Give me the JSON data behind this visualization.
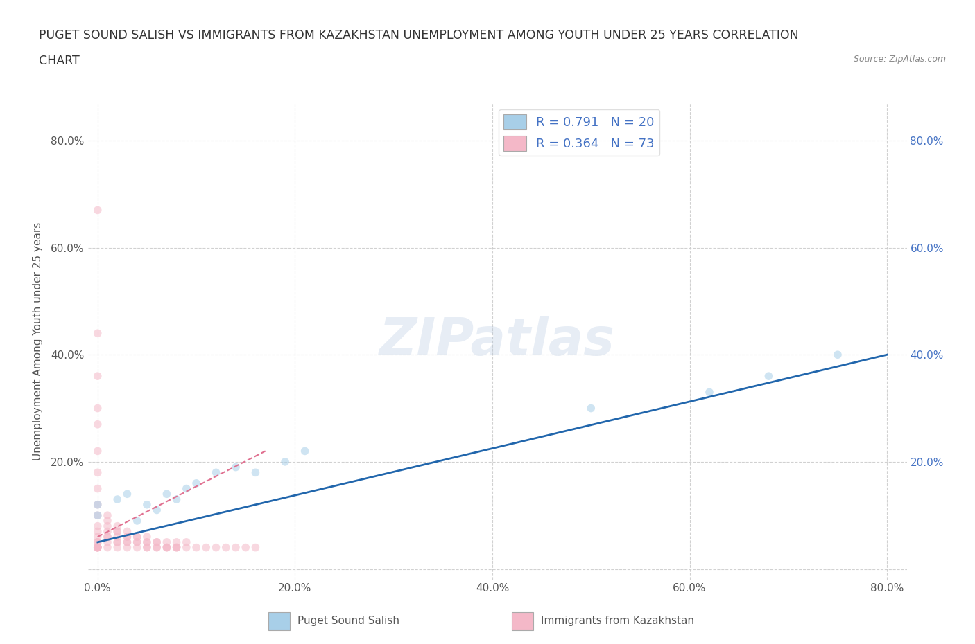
{
  "title_line1": "PUGET SOUND SALISH VS IMMIGRANTS FROM KAZAKHSTAN UNEMPLOYMENT AMONG YOUTH UNDER 25 YEARS CORRELATION",
  "title_line2": "CHART",
  "source": "Source: ZipAtlas.com",
  "ylabel": "Unemployment Among Youth under 25 years",
  "watermark": "ZIPatlas",
  "blue_color": "#a8cfe8",
  "pink_color": "#f4b8c8",
  "blue_line_color": "#2166ac",
  "pink_line_color": "#e07090",
  "axis_color": "#555555",
  "grid_color": "#cccccc",
  "background_color": "#ffffff",
  "right_tick_color": "#4472c4",
  "xlim": [
    -0.01,
    0.82
  ],
  "ylim": [
    -0.02,
    0.87
  ],
  "xticks": [
    0.0,
    0.2,
    0.4,
    0.6,
    0.8
  ],
  "yticks": [
    0.0,
    0.2,
    0.4,
    0.6,
    0.8
  ],
  "xticklabels": [
    "0.0%",
    "20.0%",
    "40.0%",
    "60.0%",
    "80.0%"
  ],
  "left_yticklabels": [
    "",
    "20.0%",
    "40.0%",
    "60.0%",
    "80.0%"
  ],
  "right_yticklabels": [
    "20.0%",
    "40.0%",
    "60.0%",
    "80.0%"
  ],
  "right_yticks": [
    0.2,
    0.4,
    0.6,
    0.8
  ],
  "blue_scatter_x": [
    0.0,
    0.0,
    0.02,
    0.03,
    0.04,
    0.05,
    0.06,
    0.07,
    0.08,
    0.09,
    0.1,
    0.12,
    0.14,
    0.16,
    0.19,
    0.21,
    0.5,
    0.62,
    0.68,
    0.75
  ],
  "blue_scatter_y": [
    0.1,
    0.12,
    0.13,
    0.14,
    0.09,
    0.12,
    0.11,
    0.14,
    0.13,
    0.15,
    0.16,
    0.18,
    0.19,
    0.18,
    0.2,
    0.22,
    0.3,
    0.33,
    0.36,
    0.4
  ],
  "pink_scatter_x": [
    0.0,
    0.0,
    0.0,
    0.0,
    0.0,
    0.0,
    0.0,
    0.0,
    0.0,
    0.0,
    0.0,
    0.0,
    0.0,
    0.0,
    0.0,
    0.0,
    0.0,
    0.0,
    0.0,
    0.0,
    0.01,
    0.01,
    0.01,
    0.01,
    0.01,
    0.01,
    0.01,
    0.01,
    0.02,
    0.02,
    0.02,
    0.02,
    0.02,
    0.02,
    0.02,
    0.03,
    0.03,
    0.03,
    0.03,
    0.03,
    0.03,
    0.04,
    0.04,
    0.04,
    0.04,
    0.04,
    0.05,
    0.05,
    0.05,
    0.05,
    0.05,
    0.06,
    0.06,
    0.06,
    0.06,
    0.07,
    0.07,
    0.07,
    0.07,
    0.08,
    0.08,
    0.08,
    0.08,
    0.09,
    0.09,
    0.1,
    0.11,
    0.12,
    0.13,
    0.14,
    0.15,
    0.16,
    0.0
  ],
  "pink_scatter_y": [
    0.67,
    0.44,
    0.36,
    0.3,
    0.27,
    0.22,
    0.18,
    0.15,
    0.12,
    0.1,
    0.08,
    0.07,
    0.06,
    0.05,
    0.05,
    0.04,
    0.04,
    0.04,
    0.04,
    0.04,
    0.1,
    0.09,
    0.08,
    0.07,
    0.06,
    0.06,
    0.05,
    0.04,
    0.08,
    0.07,
    0.07,
    0.06,
    0.05,
    0.05,
    0.04,
    0.07,
    0.06,
    0.06,
    0.05,
    0.05,
    0.04,
    0.06,
    0.06,
    0.05,
    0.05,
    0.04,
    0.06,
    0.05,
    0.05,
    0.04,
    0.04,
    0.05,
    0.05,
    0.04,
    0.04,
    0.05,
    0.04,
    0.04,
    0.04,
    0.05,
    0.04,
    0.04,
    0.04,
    0.05,
    0.04,
    0.04,
    0.04,
    0.04,
    0.04,
    0.04,
    0.04,
    0.04,
    0.04
  ],
  "blue_trend_x": [
    0.0,
    0.8
  ],
  "blue_trend_y": [
    0.05,
    0.4
  ],
  "pink_trend_x": [
    0.0,
    0.17
  ],
  "pink_trend_y": [
    0.06,
    0.22
  ],
  "marker_size": 70,
  "marker_alpha": 0.55,
  "title_fontsize": 12.5,
  "label_fontsize": 11,
  "tick_fontsize": 11,
  "legend_fontsize": 13,
  "legend_R1": "R = 0.791   N = 20",
  "legend_R2": "R = 0.364   N = 73",
  "bottom_label1": "Puget Sound Salish",
  "bottom_label2": "Immigrants from Kazakhstan"
}
